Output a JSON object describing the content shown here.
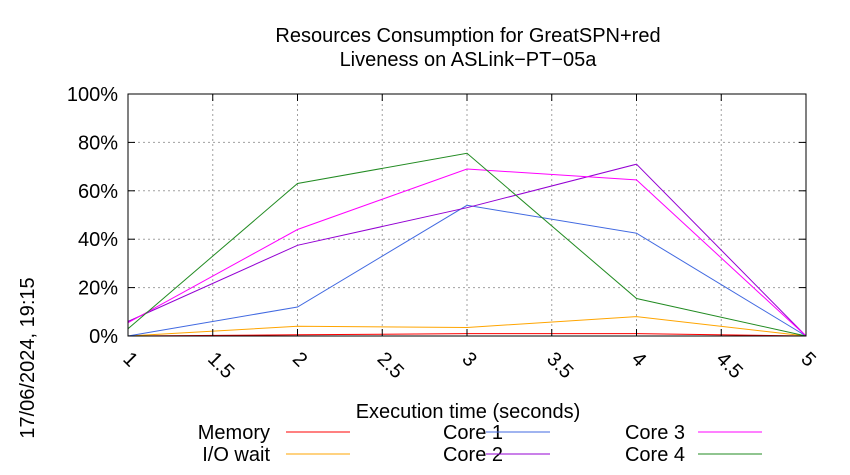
{
  "chart_data": {
    "type": "line",
    "title": [
      "Resources Consumption for GreatSPN+red",
      "Liveness on ASLink−PT−05a"
    ],
    "xlabel": "Execution time (seconds)",
    "ylabel": "",
    "timestamp": "17/06/2024, 19:15",
    "xlim": [
      1,
      5
    ],
    "ylim": [
      0,
      100
    ],
    "x_ticks": [
      "1",
      "1.5",
      "2",
      "2.5",
      "3",
      "3.5",
      "4",
      "4.5",
      "5"
    ],
    "y_ticks": [
      "0%",
      "20%",
      "40%",
      "60%",
      "80%",
      "100%"
    ],
    "grid": true,
    "legend_position": "bottom",
    "x": [
      1,
      2,
      3,
      4,
      5
    ],
    "series": [
      {
        "name": "Memory",
        "color": "#ff0000",
        "values": [
          0,
          0.5,
          1,
          1,
          0
        ]
      },
      {
        "name": "I/O wait",
        "color": "#ffa500",
        "values": [
          0,
          4,
          3.5,
          8,
          0
        ]
      },
      {
        "name": "Core 1",
        "color": "#4169e1",
        "values": [
          0,
          12,
          54,
          42.5,
          0
        ]
      },
      {
        "name": "Core 2",
        "color": "#9400d3",
        "values": [
          6,
          37.5,
          53,
          71,
          0
        ]
      },
      {
        "name": "Core 3",
        "color": "#ff00ff",
        "values": [
          5.5,
          44,
          69,
          64.5,
          0
        ]
      },
      {
        "name": "Core 4",
        "color": "#228b22",
        "values": [
          3,
          63,
          75.5,
          15.5,
          0
        ]
      }
    ]
  }
}
